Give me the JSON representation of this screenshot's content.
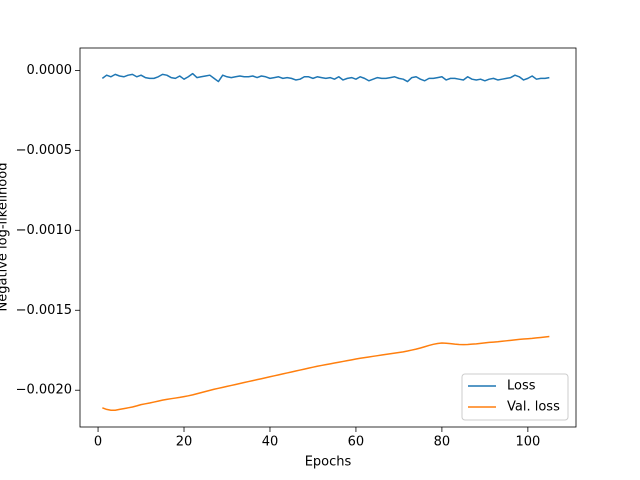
{
  "chart_data": {
    "type": "line",
    "xlabel": "Epochs",
    "ylabel": "Negative log-likelihood",
    "x": [
      1,
      2,
      3,
      4,
      5,
      6,
      7,
      8,
      9,
      10,
      11,
      12,
      13,
      14,
      15,
      16,
      17,
      18,
      19,
      20,
      21,
      22,
      23,
      24,
      25,
      26,
      27,
      28,
      29,
      30,
      31,
      32,
      33,
      34,
      35,
      36,
      37,
      38,
      39,
      40,
      41,
      42,
      43,
      44,
      45,
      46,
      47,
      48,
      49,
      50,
      51,
      52,
      53,
      54,
      55,
      56,
      57,
      58,
      59,
      60,
      61,
      62,
      63,
      64,
      65,
      66,
      67,
      68,
      69,
      70,
      71,
      72,
      73,
      74,
      75,
      76,
      77,
      78,
      79,
      80,
      81,
      82,
      83,
      84,
      85,
      86,
      87,
      88,
      89,
      90,
      91,
      92,
      93,
      94,
      95,
      96,
      97,
      98,
      99,
      100,
      101,
      102,
      103,
      104,
      105
    ],
    "series": [
      {
        "name": "Loss",
        "color": "#1f77b4",
        "values": [
          -5e-05,
          -3e-05,
          -4e-05,
          -2.5e-05,
          -3.5e-05,
          -4e-05,
          -3e-05,
          -2.5e-05,
          -4e-05,
          -3e-05,
          -4.5e-05,
          -5e-05,
          -5e-05,
          -4e-05,
          -2.5e-05,
          -3e-05,
          -4.5e-05,
          -5e-05,
          -3.5e-05,
          -5.5e-05,
          -4e-05,
          -2e-05,
          -4.5e-05,
          -4e-05,
          -3.5e-05,
          -3e-05,
          -5e-05,
          -7e-05,
          -3e-05,
          -4e-05,
          -4.5e-05,
          -4e-05,
          -3.5e-05,
          -4e-05,
          -4e-05,
          -3.5e-05,
          -4.5e-05,
          -3.5e-05,
          -4e-05,
          -5e-05,
          -4.5e-05,
          -4e-05,
          -5e-05,
          -4.5e-05,
          -5e-05,
          -6e-05,
          -5.5e-05,
          -4e-05,
          -4e-05,
          -5e-05,
          -4e-05,
          -4.5e-05,
          -5e-05,
          -4.5e-05,
          -5.5e-05,
          -4e-05,
          -6e-05,
          -5e-05,
          -4.5e-05,
          -5.5e-05,
          -4e-05,
          -5e-05,
          -6.5e-05,
          -5.5e-05,
          -4.5e-05,
          -5e-05,
          -5e-05,
          -4.5e-05,
          -4e-05,
          -5e-05,
          -5.5e-05,
          -7e-05,
          -4.5e-05,
          -4e-05,
          -5.5e-05,
          -6.5e-05,
          -5e-05,
          -5e-05,
          -4.5e-05,
          -4e-05,
          -6e-05,
          -5e-05,
          -5e-05,
          -5.5e-05,
          -6e-05,
          -4e-05,
          -5.5e-05,
          -6e-05,
          -5.5e-05,
          -6.5e-05,
          -5.5e-05,
          -5e-05,
          -6e-05,
          -5.5e-05,
          -5e-05,
          -4.5e-05,
          -3e-05,
          -4e-05,
          -6e-05,
          -5e-05,
          -3.5e-05,
          -5.5e-05,
          -5e-05,
          -5e-05,
          -4.5e-05
        ]
      },
      {
        "name": "Val. loss",
        "color": "#ff7f0e",
        "values": [
          -0.00211,
          -0.00212,
          -0.002125,
          -0.002125,
          -0.00212,
          -0.002115,
          -0.00211,
          -0.002105,
          -0.002098,
          -0.00209,
          -0.002085,
          -0.00208,
          -0.002074,
          -0.002068,
          -0.002062,
          -0.002057,
          -0.002053,
          -0.002049,
          -0.002045,
          -0.00204,
          -0.002035,
          -0.002029,
          -0.002022,
          -0.002015,
          -0.002008,
          -0.002001,
          -0.001994,
          -0.001988,
          -0.001982,
          -0.001976,
          -0.00197,
          -0.001964,
          -0.001958,
          -0.001952,
          -0.001946,
          -0.00194,
          -0.001934,
          -0.001928,
          -0.001922,
          -0.001916,
          -0.00191,
          -0.001904,
          -0.001898,
          -0.001892,
          -0.001886,
          -0.00188,
          -0.001874,
          -0.001868,
          -0.001862,
          -0.001856,
          -0.00185,
          -0.001845,
          -0.00184,
          -0.001835,
          -0.00183,
          -0.001825,
          -0.00182,
          -0.001815,
          -0.00181,
          -0.001805,
          -0.0018,
          -0.001796,
          -0.001792,
          -0.001788,
          -0.001784,
          -0.00178,
          -0.001776,
          -0.001772,
          -0.001768,
          -0.001764,
          -0.00176,
          -0.001755,
          -0.001749,
          -0.001743,
          -0.001736,
          -0.001728,
          -0.00172,
          -0.001713,
          -0.001708,
          -0.001705,
          -0.001706,
          -0.001709,
          -0.001712,
          -0.001714,
          -0.001715,
          -0.001714,
          -0.001712,
          -0.00171,
          -0.001707,
          -0.001704,
          -0.001701,
          -0.001699,
          -0.001697,
          -0.001694,
          -0.001691,
          -0.001688,
          -0.001685,
          -0.001682,
          -0.00168,
          -0.001678,
          -0.001676,
          -0.001673,
          -0.00167,
          -0.001667,
          -0.001664
        ]
      }
    ],
    "xlim": [
      -4.2,
      111.2
    ],
    "ylim": [
      -0.00223,
      0.00014
    ],
    "xticks": [
      0,
      20,
      40,
      60,
      80,
      100
    ],
    "yticks": [
      {
        "value": -0.002,
        "label": "−0.0020"
      },
      {
        "value": -0.0015,
        "label": "−0.0015"
      },
      {
        "value": -0.001,
        "label": "−0.0010"
      },
      {
        "value": -0.0005,
        "label": "−0.0005"
      },
      {
        "value": 0,
        "label": "0.0000"
      }
    ],
    "legend": "lower right",
    "grid": false
  }
}
